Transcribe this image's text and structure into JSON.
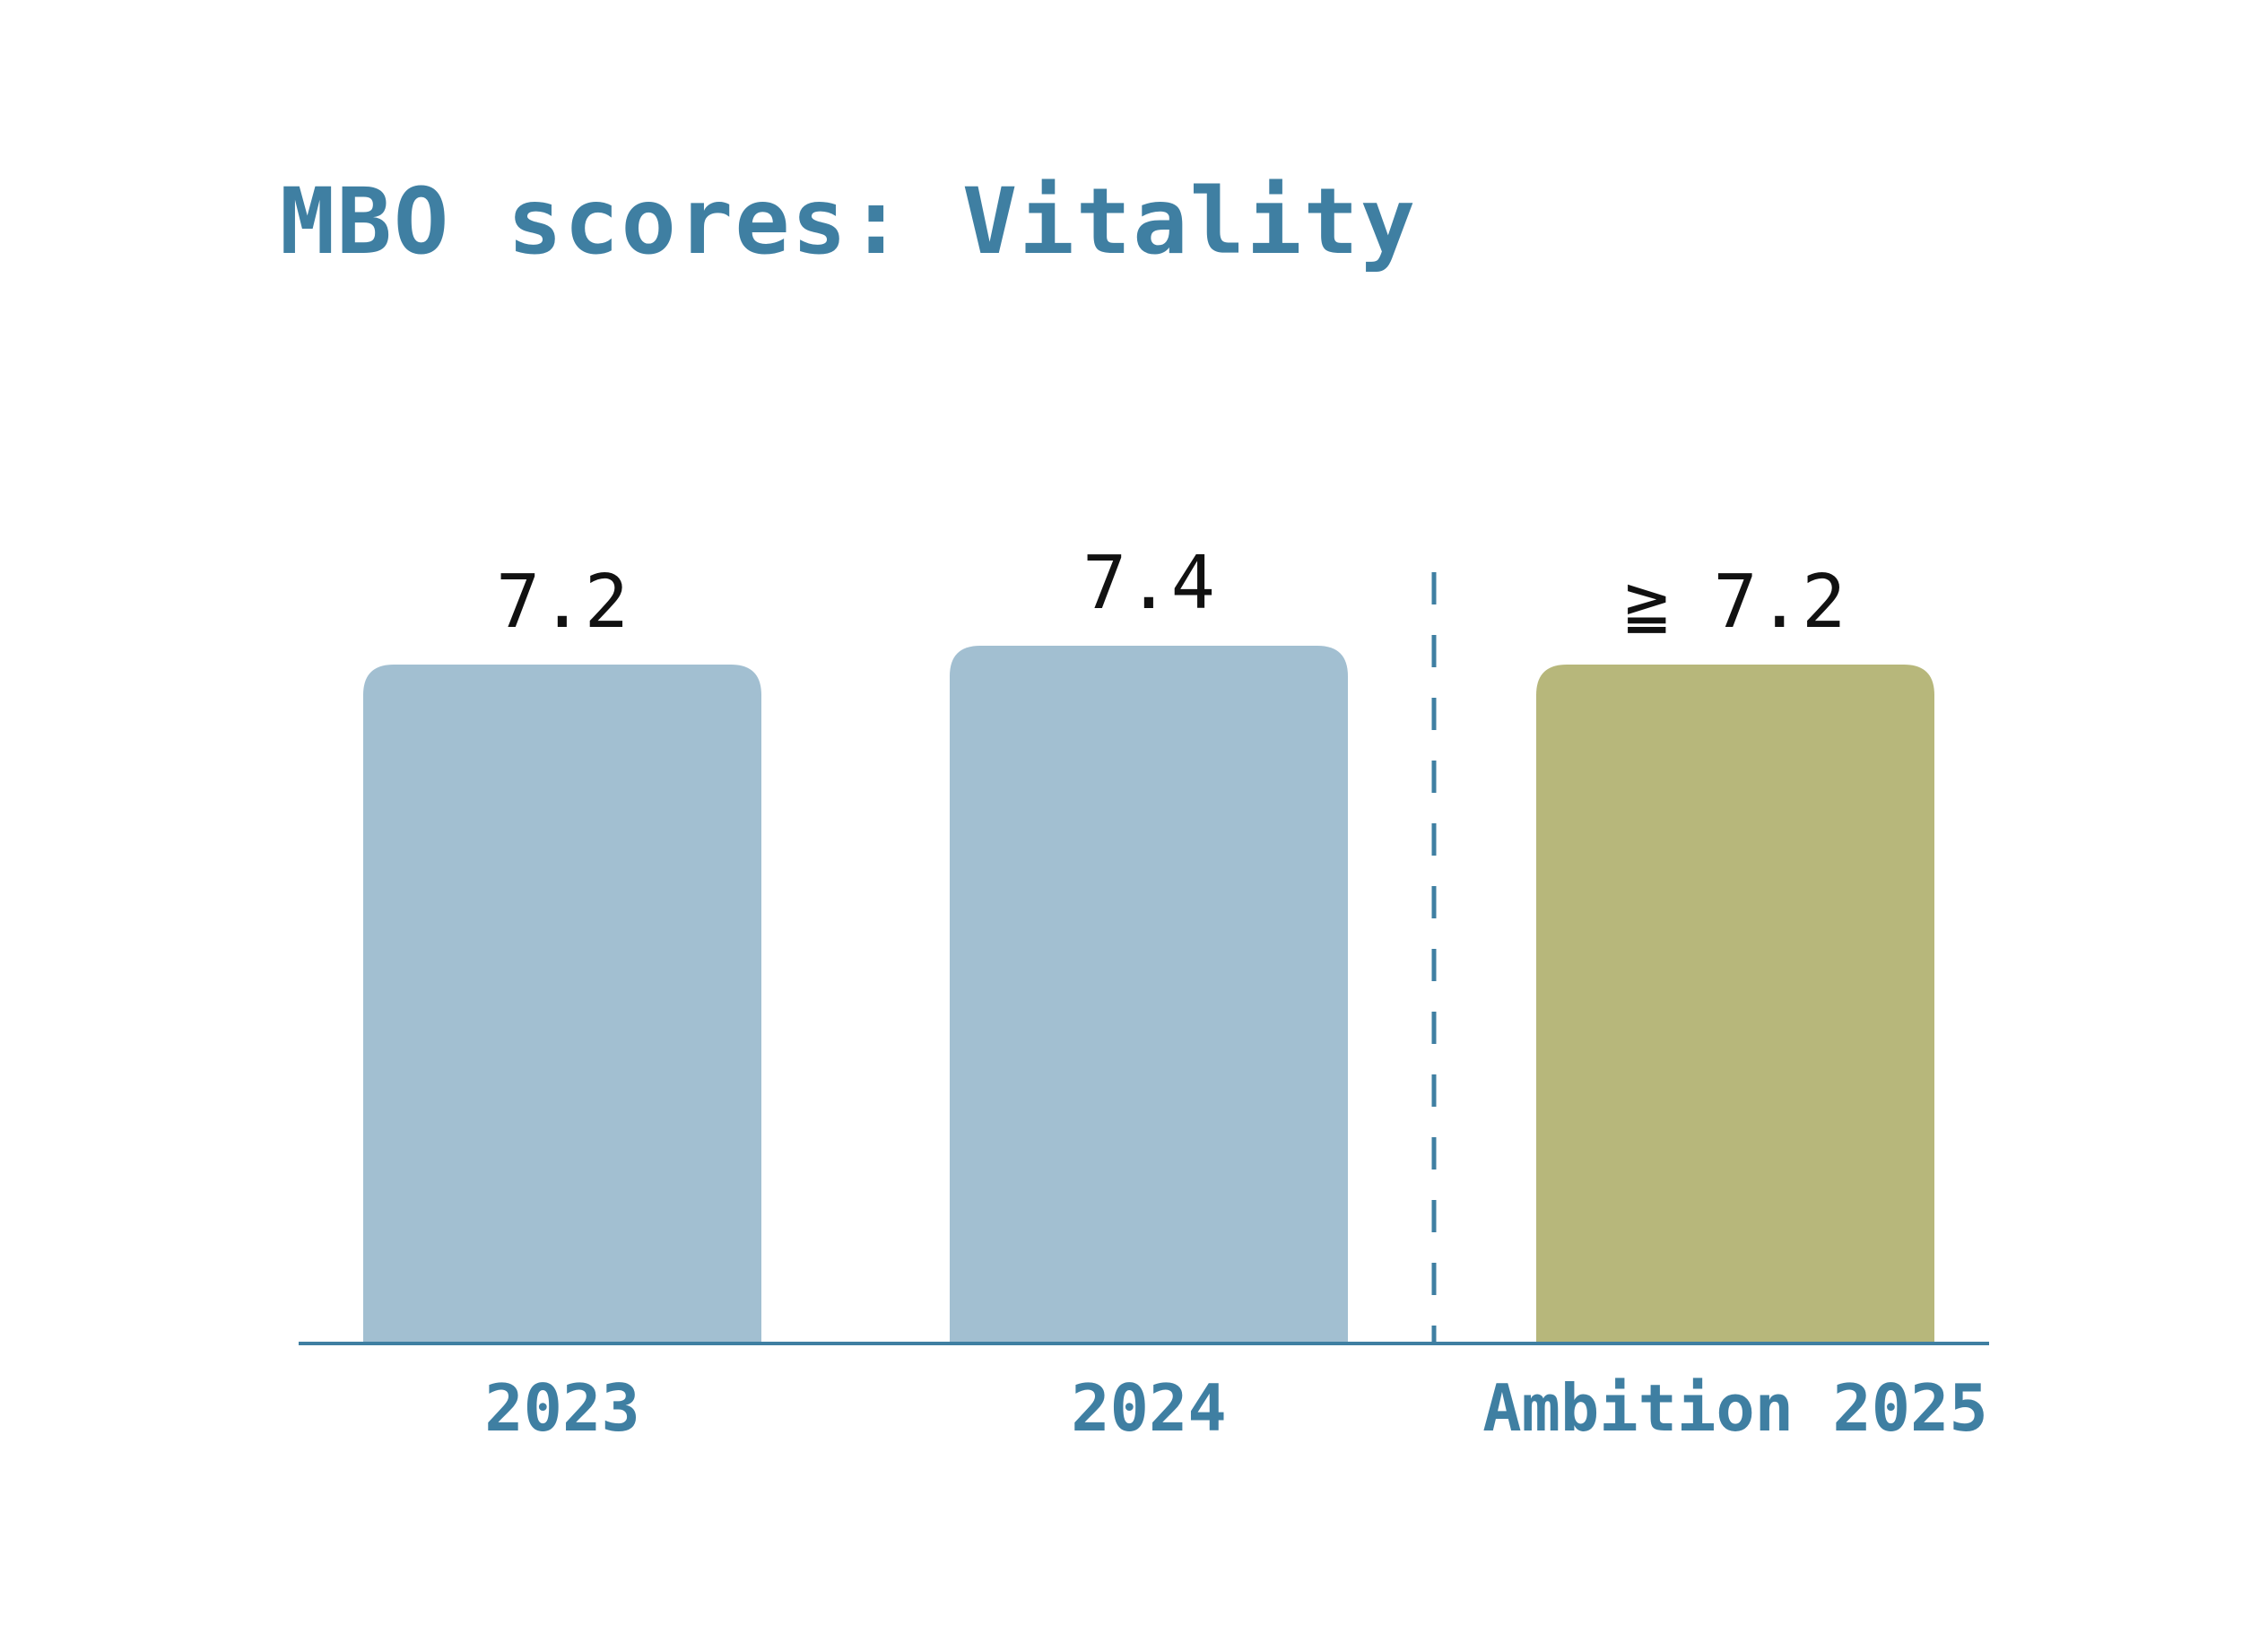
{
  "chart_data": {
    "type": "bar",
    "title": "MBO scores: Vitality",
    "xlabel": "",
    "ylabel": "",
    "categories": [
      "2023",
      "2024",
      "Ambition 2025"
    ],
    "values": [
      7.2,
      7.4,
      7.2
    ],
    "value_labels": [
      "7.2",
      "7.4",
      "≧ 7.2"
    ],
    "bar_colors": [
      "#a2bfd1",
      "#a2bfd1",
      "#b7b77b"
    ],
    "ylim": [
      0,
      8
    ],
    "grid": false,
    "legend": "none",
    "annotations": [
      "dashed separator between actual and ambition"
    ]
  },
  "colors": {
    "title": "#3f7fa2",
    "axis": "#3f7fa2",
    "separator": "#3f7fa2"
  }
}
